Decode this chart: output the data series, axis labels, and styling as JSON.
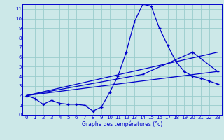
{
  "title": "Graphe des températures (°c)",
  "bg_color": "#cce8e8",
  "grid_color": "#99cccc",
  "line_color": "#0000cc",
  "xlim": [
    -0.5,
    23.5
  ],
  "ylim": [
    0,
    11.5
  ],
  "xticks": [
    0,
    1,
    2,
    3,
    4,
    5,
    6,
    7,
    8,
    9,
    10,
    11,
    12,
    13,
    14,
    15,
    16,
    17,
    18,
    19,
    20,
    21,
    22,
    23
  ],
  "yticks": [
    0,
    1,
    2,
    3,
    4,
    5,
    6,
    7,
    8,
    9,
    10,
    11
  ],
  "series1_x": [
    0,
    1,
    2,
    3,
    4,
    5,
    6,
    7,
    8,
    9,
    10,
    11,
    12,
    13,
    14,
    15,
    16,
    17,
    18,
    19,
    20,
    21,
    22,
    23
  ],
  "series1_y": [
    2.0,
    1.7,
    1.1,
    1.5,
    1.2,
    1.1,
    1.1,
    1.0,
    0.4,
    0.8,
    2.3,
    4.0,
    6.5,
    9.7,
    11.5,
    11.3,
    9.0,
    7.2,
    5.5,
    4.5,
    4.0,
    3.8,
    3.5,
    3.2
  ],
  "series2_x": [
    0,
    14,
    20,
    23
  ],
  "series2_y": [
    2.0,
    4.2,
    6.5,
    4.5
  ],
  "series3_x": [
    0,
    23
  ],
  "series3_y": [
    2.0,
    4.5
  ],
  "series4_x": [
    0,
    23
  ],
  "series4_y": [
    2.0,
    6.5
  ]
}
